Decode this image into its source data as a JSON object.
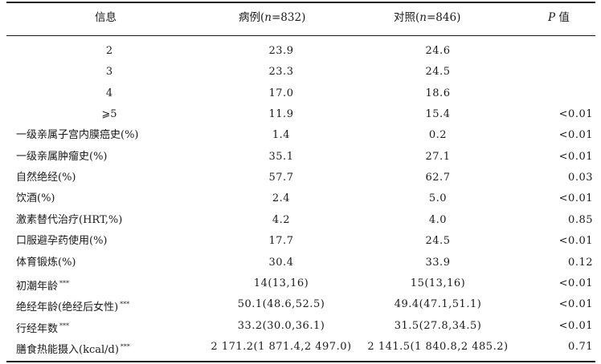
{
  "header": {
    "info": "信息",
    "case_prefix": "病例(",
    "case_n": "n",
    "case_suffix": "=832)",
    "control_prefix": "对照(",
    "control_n": "n",
    "control_suffix": "=846)",
    "p_italic": "P",
    "p_suffix": " 值"
  },
  "rows": [
    {
      "info": "2",
      "case": "23.9",
      "control": "24.6",
      "p": "",
      "note": ""
    },
    {
      "info": "3",
      "case": "23.3",
      "control": "24.5",
      "p": "",
      "note": ""
    },
    {
      "info": "4",
      "case": "17.0",
      "control": "18.6",
      "p": "",
      "note": ""
    },
    {
      "info": "⩾5",
      "case": "11.9",
      "control": "15.4",
      "p": "<0.01",
      "note": ""
    },
    {
      "info": "一级亲属子宫内膜癌史(%)",
      "case": "1.4",
      "control": "0.2",
      "p": "<0.01",
      "note": ""
    },
    {
      "info": "一级亲属肿瘤史(%)",
      "case": "35.1",
      "control": "27.1",
      "p": "<0.01",
      "note": ""
    },
    {
      "info": "自然绝经(%)",
      "case": "57.7",
      "control": "62.7",
      "p": "0.03",
      "note": ""
    },
    {
      "info": "饮酒(%)",
      "case": "2.4",
      "control": "5.0",
      "p": "<0.01",
      "note": ""
    },
    {
      "info": "激素替代治疗(HRT,%)",
      "case": "4.2",
      "control": "4.0",
      "p": "0.85",
      "note": ""
    },
    {
      "info": "口服避孕药使用(%)",
      "case": "17.7",
      "control": "24.5",
      "p": "<0.01",
      "note": ""
    },
    {
      "info": "体育锻炼(%)",
      "case": "30.4",
      "control": "33.9",
      "p": "0.12",
      "note": ""
    },
    {
      "info": "初潮年龄",
      "case": "14(13,16)",
      "control": "15(13,16)",
      "p": "<0.01",
      "note": "***"
    },
    {
      "info": "绝经年龄(绝经后女性)",
      "case": "50.1(48.6,52.5)",
      "control": "49.4(47.1,51.1)",
      "p": "<0.01",
      "note": "***"
    },
    {
      "info": "行经年数",
      "case": "33.2(30.0,36.1)",
      "control": "31.5(27.8,34.5)",
      "p": "<0.01",
      "note": "***"
    },
    {
      "info": "膳食热能摄入(kcal/d)",
      "case": "2 171.2(1 871.4,2 497.0)",
      "control": "2 141.5(1 840.8,2 485.2)",
      "p": "0.71",
      "note": "***"
    }
  ]
}
